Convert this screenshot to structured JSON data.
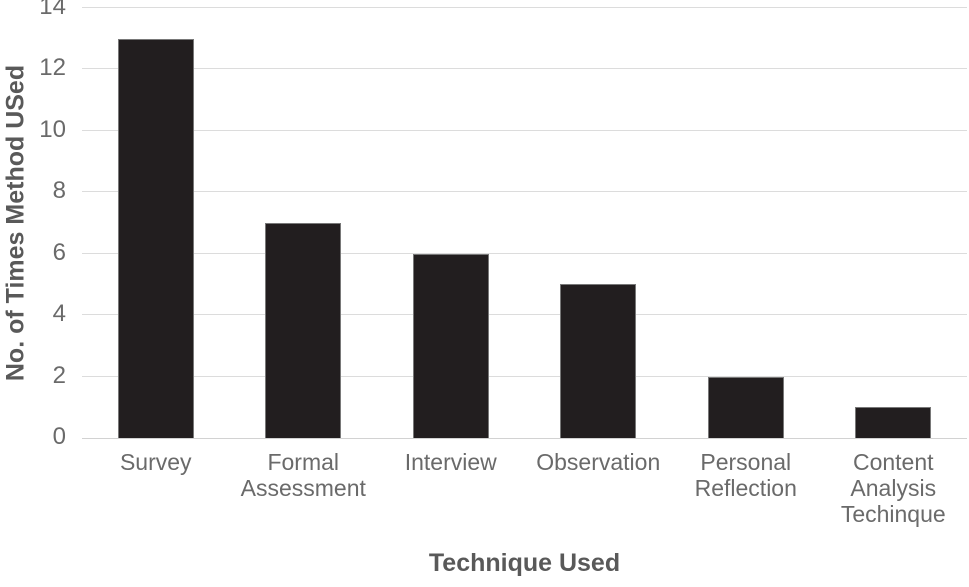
{
  "chart_data": {
    "type": "bar",
    "title": "",
    "xlabel": "Technique Used",
    "ylabel": "No. of Times Method USed",
    "categories": [
      "Survey",
      "Formal Assessment",
      "Interview",
      "Observation",
      "Personal Reflection",
      "Content Analysis Techinque"
    ],
    "values": [
      13,
      7,
      6,
      5,
      2,
      1
    ],
    "ylim": [
      0,
      14
    ],
    "yticks": [
      0,
      2,
      4,
      6,
      8,
      10,
      12,
      14
    ],
    "grid": true,
    "legend": false,
    "colors": {
      "bar_fill": "#221e1f",
      "bar_border": "#787878",
      "gridline": "#dcdcdc",
      "tick_text": "#6a6a6a",
      "axis_title_text": "#595959",
      "background": "#ffffff"
    }
  }
}
